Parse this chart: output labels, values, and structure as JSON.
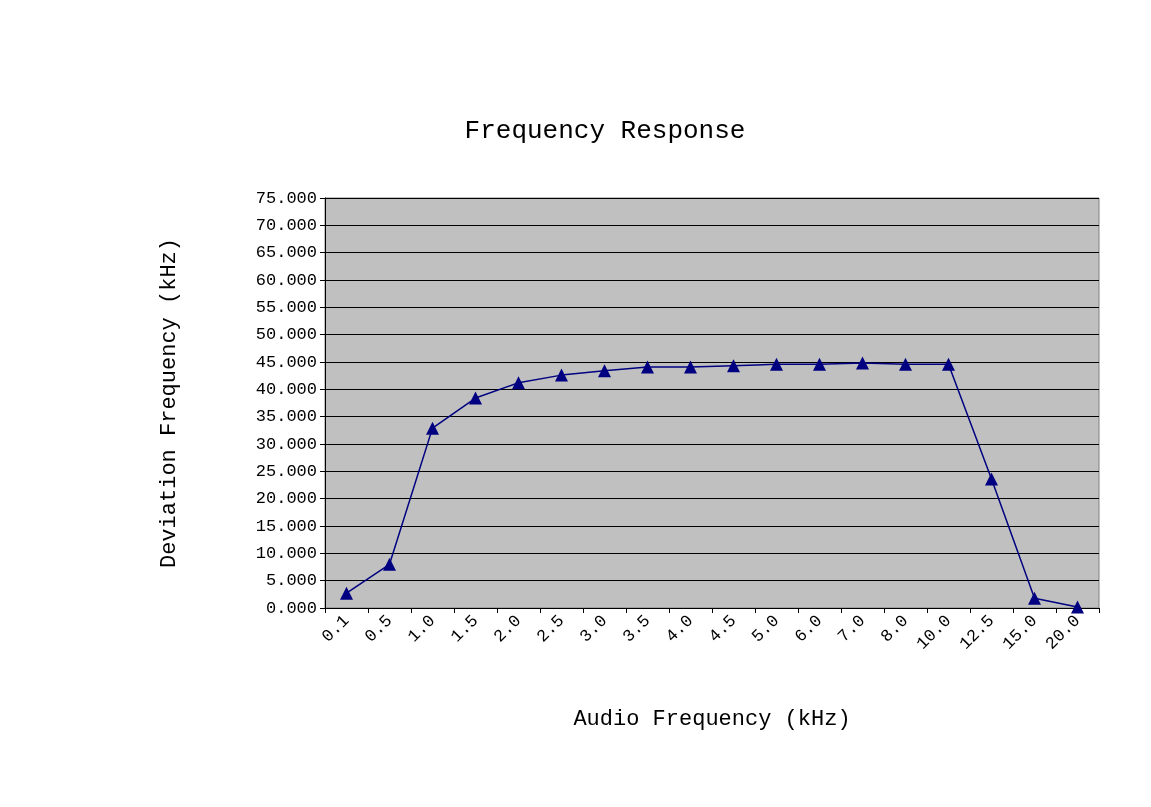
{
  "chart_data": {
    "type": "line",
    "title": "Frequency Response",
    "xlabel": "Audio Frequency (kHz)",
    "ylabel": "Deviation Frequency (kHz)",
    "categories": [
      "0.1",
      "0.5",
      "1.0",
      "1.5",
      "2.0",
      "2.5",
      "3.0",
      "3.5",
      "4.0",
      "4.5",
      "5.0",
      "6.0",
      "7.0",
      "8.0",
      "10.0",
      "12.5",
      "15.0",
      "20.0"
    ],
    "series": [
      {
        "color": "#000080",
        "values": [
          2.7,
          8.0,
          32.9,
          38.4,
          41.2,
          42.6,
          43.4,
          44.1,
          44.1,
          44.3,
          44.6,
          44.6,
          44.8,
          44.6,
          44.6,
          23.6,
          1.8,
          0.2
        ]
      }
    ],
    "ylim": [
      0,
      75
    ],
    "yticks": [
      {
        "value": 0,
        "label": "0.000"
      },
      {
        "value": 5,
        "label": "5.000"
      },
      {
        "value": 10,
        "label": "10.000"
      },
      {
        "value": 15,
        "label": "15.000"
      },
      {
        "value": 20,
        "label": "20.000"
      },
      {
        "value": 25,
        "label": "25.000"
      },
      {
        "value": 30,
        "label": "30.000"
      },
      {
        "value": 35,
        "label": "35.000"
      },
      {
        "value": 40,
        "label": "40.000"
      },
      {
        "value": 45,
        "label": "45.000"
      },
      {
        "value": 50,
        "label": "50.000"
      },
      {
        "value": 55,
        "label": "55.000"
      },
      {
        "value": 60,
        "label": "60.000"
      },
      {
        "value": 65,
        "label": "65.000"
      },
      {
        "value": 70,
        "label": "70.000"
      },
      {
        "value": 75,
        "label": "75.000"
      }
    ],
    "grid": "y",
    "marker": "triangle",
    "line_style": "solid"
  }
}
